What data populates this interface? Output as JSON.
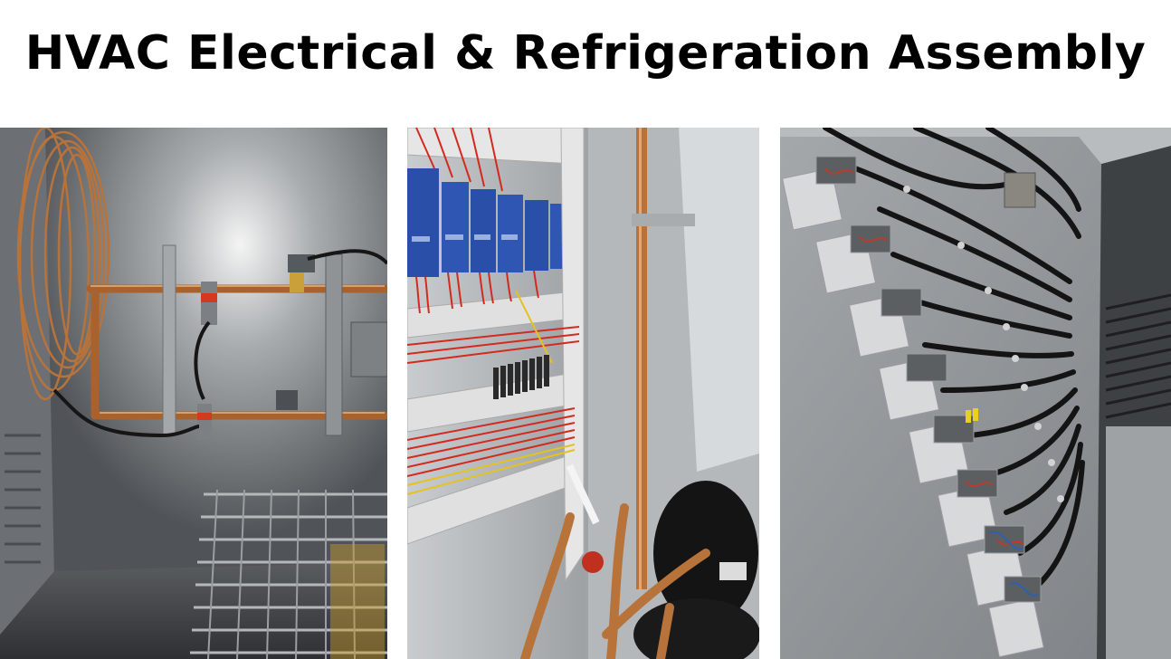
{
  "header": {
    "title": "HVAC Electrical & Refrigeration Assembly"
  },
  "photos": [
    {
      "subject": "copper refrigeration piping with pressure switches and valves inside cabinet"
    },
    {
      "subject": "control panel with blue controller modules and red wiring in cable ducts, compressor and copper lines"
    },
    {
      "subject": "staggered junction boxes with black conduit runs on gray metal wall"
    }
  ],
  "colors": {
    "copper": "#b8733a",
    "panel_blue": "#2a4fa8",
    "wire_red": "#d42a1e",
    "metal_gray": "#8c9094",
    "conduit_black": "#141414"
  }
}
